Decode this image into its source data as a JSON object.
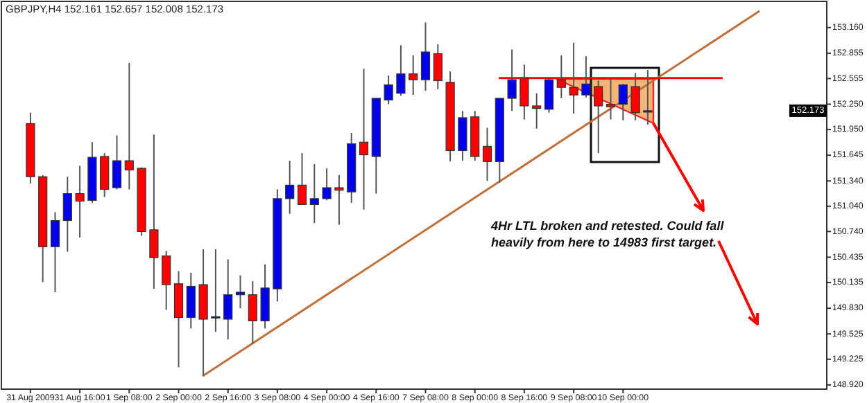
{
  "chart_data": {
    "type": "candlestick",
    "title": "GBPJPY,H4  152.161 152.657 152.008 152.173",
    "categories": [
      "31 Aug 2009",
      null,
      null,
      null,
      "31 Aug 16:00",
      null,
      null,
      null,
      "1 Sep 08:00",
      null,
      null,
      null,
      "2 Sep 00:00",
      null,
      null,
      null,
      "2 Sep 16:00",
      null,
      null,
      null,
      "3 Sep 08:00",
      null,
      null,
      null,
      "4 Sep 00:00",
      null,
      null,
      null,
      "4 Sep 16:00",
      null,
      null,
      null,
      "7 Sep 08:00",
      null,
      null,
      null,
      "8 Sep 00:00",
      null,
      null,
      null,
      "8 Sep 16:00",
      null,
      null,
      null,
      "9 Sep 08:00",
      null,
      null,
      null,
      "10 Sep 00:00",
      null,
      null,
      null,
      null,
      null,
      null,
      null,
      null,
      null,
      null,
      null,
      null,
      null,
      null,
      null,
      null
    ],
    "ohlc": [
      [
        152.02,
        152.15,
        151.31,
        151.39
      ],
      [
        151.39,
        151.41,
        150.14,
        150.56
      ],
      [
        150.56,
        150.97,
        150.02,
        150.87
      ],
      [
        150.87,
        151.39,
        150.5,
        151.19
      ],
      [
        151.19,
        151.52,
        150.67,
        151.1
      ],
      [
        151.11,
        151.8,
        151.08,
        151.62
      ],
      [
        151.63,
        151.67,
        151.15,
        151.24
      ],
      [
        151.26,
        151.88,
        151.24,
        151.58
      ],
      [
        151.58,
        152.74,
        151.24,
        151.47
      ],
      [
        151.49,
        151.5,
        150.69,
        150.74
      ],
      [
        150.76,
        151.89,
        150.06,
        150.43
      ],
      [
        150.45,
        150.51,
        149.81,
        150.11
      ],
      [
        150.12,
        150.27,
        149.13,
        149.72
      ],
      [
        149.72,
        150.25,
        149.59,
        150.09
      ],
      [
        150.11,
        150.53,
        149.03,
        149.7
      ],
      [
        149.72,
        150.53,
        149.55,
        149.73
      ],
      [
        149.7,
        150.41,
        149.46,
        149.99
      ],
      [
        149.99,
        150.22,
        149.83,
        150.02
      ],
      [
        149.99,
        150.15,
        149.41,
        149.68
      ],
      [
        149.68,
        150.35,
        149.59,
        150.07
      ],
      [
        150.06,
        151.24,
        149.91,
        151.13
      ],
      [
        151.13,
        151.58,
        150.95,
        151.29
      ],
      [
        151.29,
        151.67,
        151.06,
        151.06
      ],
      [
        151.06,
        151.54,
        150.84,
        151.13
      ],
      [
        151.13,
        151.49,
        151.11,
        151.26
      ],
      [
        151.26,
        151.41,
        150.82,
        151.23
      ],
      [
        151.21,
        151.91,
        151.08,
        151.78
      ],
      [
        151.8,
        152.67,
        151.0,
        151.65
      ],
      [
        151.63,
        152.32,
        151.19,
        152.32
      ],
      [
        152.3,
        152.59,
        152.25,
        152.48
      ],
      [
        152.38,
        152.95,
        152.35,
        152.61
      ],
      [
        152.61,
        152.83,
        152.36,
        152.54
      ],
      [
        152.54,
        153.22,
        152.41,
        152.87
      ],
      [
        152.85,
        152.96,
        152.43,
        152.53
      ],
      [
        152.51,
        152.64,
        151.57,
        151.7
      ],
      [
        151.7,
        152.17,
        151.58,
        152.09
      ],
      [
        152.1,
        152.17,
        151.58,
        151.63
      ],
      [
        151.75,
        151.97,
        151.34,
        151.57
      ],
      [
        151.57,
        152.32,
        151.32,
        152.32
      ],
      [
        152.32,
        152.9,
        152.17,
        152.54
      ],
      [
        152.56,
        152.72,
        152.07,
        152.23
      ],
      [
        152.23,
        152.38,
        151.96,
        152.2
      ],
      [
        152.19,
        152.56,
        152.15,
        152.54
      ],
      [
        152.54,
        152.83,
        152.32,
        152.45
      ],
      [
        152.45,
        152.98,
        152.14,
        152.36
      ],
      [
        152.36,
        152.82,
        152.33,
        152.49
      ],
      [
        152.46,
        152.53,
        151.67,
        152.23
      ],
      [
        152.25,
        152.54,
        152.07,
        152.22
      ],
      [
        152.25,
        152.49,
        152.06,
        152.48
      ],
      [
        152.46,
        152.62,
        152.06,
        152.15
      ],
      [
        152.161,
        152.657,
        152.008,
        152.173
      ],
      null,
      null,
      null,
      null,
      null,
      null,
      null,
      null,
      null,
      null,
      null,
      null,
      null,
      null
    ],
    "series": [
      {
        "type": "line",
        "color": "#c0703a",
        "values": [
          null,
          null,
          null,
          null,
          null,
          null,
          null,
          null,
          null,
          null,
          null,
          null,
          null,
          null,
          149.03,
          null,
          null,
          null,
          null,
          null,
          null,
          null,
          null,
          null,
          null,
          null,
          null,
          null,
          null,
          null,
          null,
          null,
          null,
          null,
          null,
          null,
          null,
          null,
          null,
          null,
          null,
          null,
          null,
          null,
          null,
          null,
          null,
          null,
          null,
          null,
          null,
          null,
          null,
          null,
          null,
          null,
          null,
          null,
          null,
          153.35,
          null,
          null,
          null,
          null,
          null
        ]
      },
      {
        "type": "line",
        "color": "#ff0000",
        "values": [
          null,
          null,
          null,
          null,
          null,
          null,
          null,
          null,
          null,
          null,
          null,
          null,
          null,
          null,
          null,
          null,
          null,
          null,
          null,
          null,
          null,
          null,
          null,
          null,
          null,
          null,
          null,
          null,
          null,
          null,
          null,
          null,
          null,
          null,
          null,
          null,
          null,
          null,
          152.56,
          null,
          null,
          null,
          null,
          null,
          null,
          null,
          null,
          null,
          null,
          null,
          null,
          null,
          null,
          null,
          null,
          null,
          152.56,
          null,
          null,
          null,
          null,
          null,
          null,
          null,
          null
        ]
      }
    ],
    "ylim": [
      148.87,
      153.47
    ],
    "yticks": [
      {
        "value": 153.16,
        "label": "153.160"
      },
      {
        "value": 152.855,
        "label": "152.855"
      },
      {
        "value": 152.555,
        "label": "152.555"
      },
      {
        "value": 152.25,
        "label": "152.250"
      },
      {
        "value": 151.95,
        "label": "151.950"
      },
      {
        "value": 151.645,
        "label": "151.645"
      },
      {
        "value": 151.34,
        "label": "151.340"
      },
      {
        "value": 151.04,
        "label": "151.040"
      },
      {
        "value": 150.74,
        "label": "150.740"
      },
      {
        "value": 150.435,
        "label": "150.435"
      },
      {
        "value": 150.135,
        "label": "150.135"
      },
      {
        "value": 149.83,
        "label": "149.830"
      },
      {
        "value": 149.525,
        "label": "149.525"
      },
      {
        "value": 149.225,
        "label": "149.225"
      },
      {
        "value": 148.92,
        "label": "148.920"
      }
    ],
    "annotations": [
      "4Hr LTL broken and retested. Could fall heavily from here to 14983 first target.",
      "152.173"
    ],
    "grid": false
  }
}
